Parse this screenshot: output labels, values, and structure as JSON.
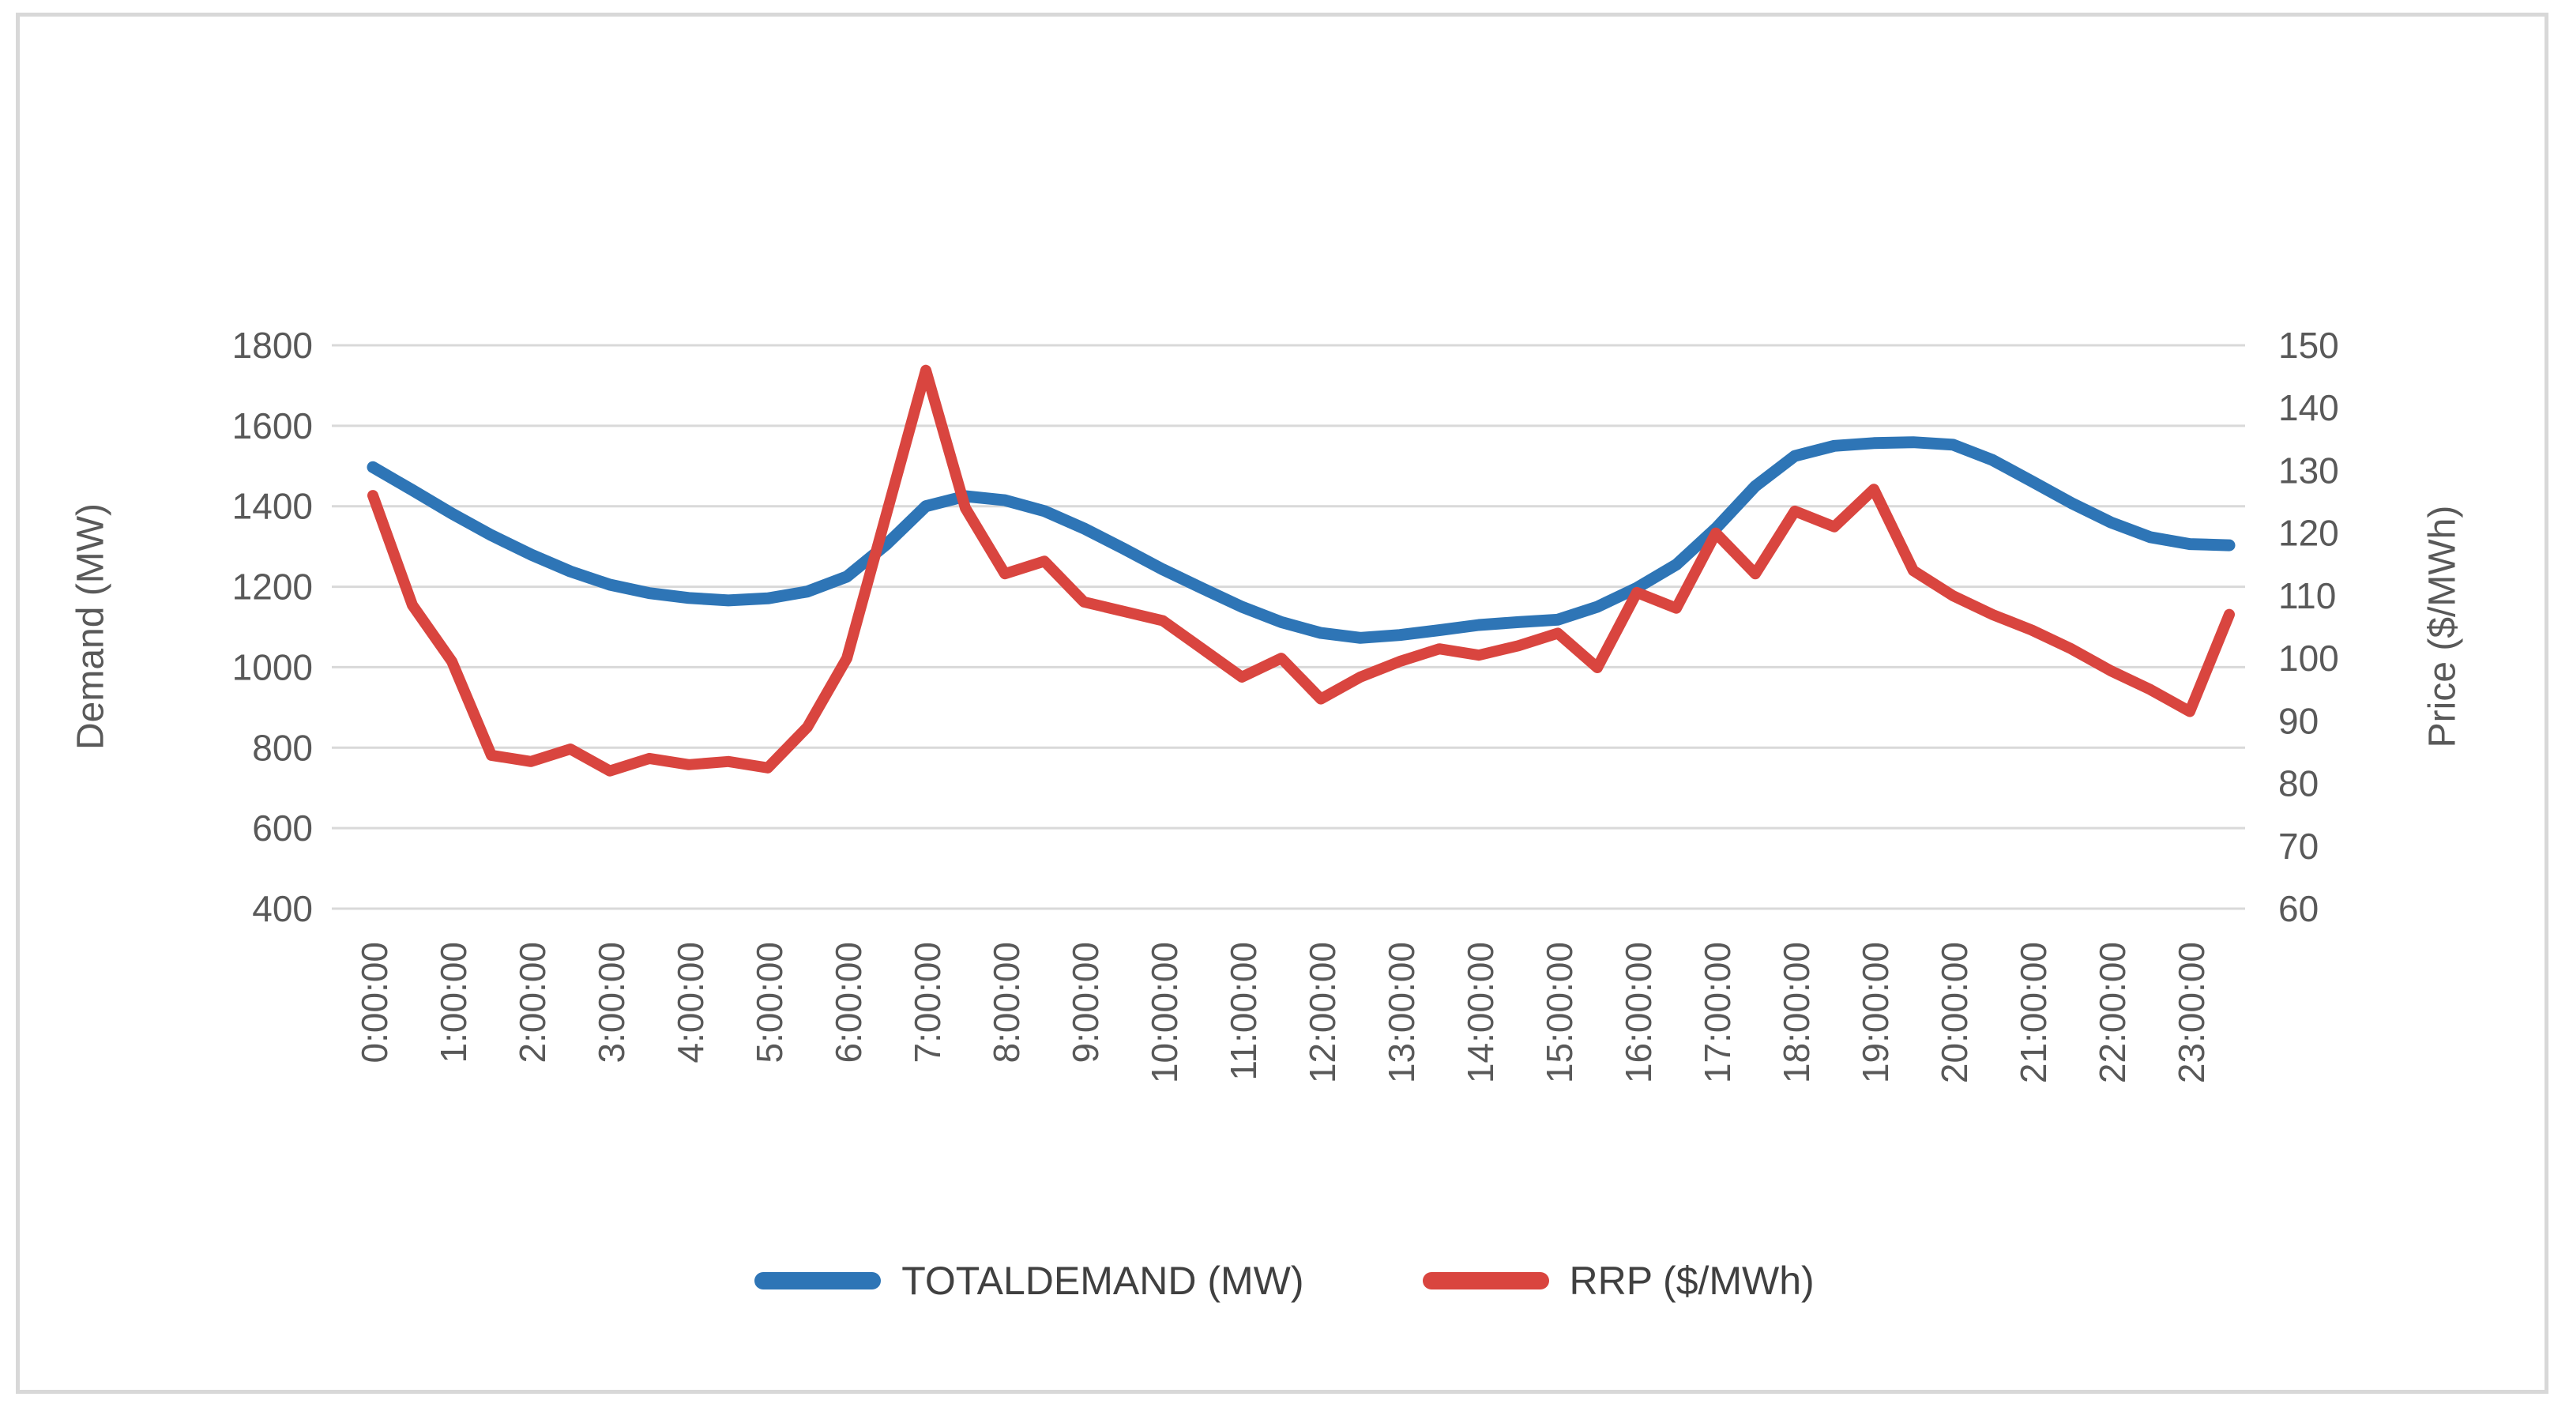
{
  "chart_data": {
    "type": "line",
    "x": [
      "0:00:00",
      "0:30:00",
      "1:00:00",
      "1:30:00",
      "2:00:00",
      "2:30:00",
      "3:00:00",
      "3:30:00",
      "4:00:00",
      "4:30:00",
      "5:00:00",
      "5:30:00",
      "6:00:00",
      "6:30:00",
      "7:00:00",
      "7:30:00",
      "8:00:00",
      "8:30:00",
      "9:00:00",
      "9:30:00",
      "10:00:00",
      "10:30:00",
      "11:00:00",
      "11:30:00",
      "12:00:00",
      "12:30:00",
      "13:00:00",
      "13:30:00",
      "14:00:00",
      "14:30:00",
      "15:00:00",
      "15:30:00",
      "16:00:00",
      "16:30:00",
      "17:00:00",
      "17:30:00",
      "18:00:00",
      "18:30:00",
      "19:00:00",
      "19:30:00",
      "20:00:00",
      "20:30:00",
      "21:00:00",
      "21:30:00",
      "22:00:00",
      "22:30:00",
      "23:00:00",
      "23:30:00"
    ],
    "x_tick_labels": [
      "0:00:00",
      "1:00:00",
      "2:00:00",
      "3:00:00",
      "4:00:00",
      "5:00:00",
      "6:00:00",
      "7:00:00",
      "8:00:00",
      "9:00:00",
      "10:00:00",
      "11:00:00",
      "12:00:00",
      "13:00:00",
      "14:00:00",
      "15:00:00",
      "16:00:00",
      "17:00:00",
      "18:00:00",
      "19:00:00",
      "20:00:00",
      "21:00:00",
      "22:00:00",
      "23:00:00"
    ],
    "series": [
      {
        "name": "TOTALDEMAND (MW)",
        "axis": "left",
        "color": "#2E75B6",
        "values": [
          1497,
          1440,
          1382,
          1328,
          1280,
          1238,
          1205,
          1184,
          1172,
          1166,
          1171,
          1188,
          1225,
          1305,
          1400,
          1425,
          1415,
          1388,
          1345,
          1295,
          1243,
          1196,
          1150,
          1112,
          1085,
          1073,
          1080,
          1092,
          1105,
          1112,
          1118,
          1150,
          1197,
          1255,
          1345,
          1450,
          1525,
          1550,
          1557,
          1559,
          1553,
          1515,
          1462,
          1408,
          1360,
          1323,
          1306,
          1303
        ]
      },
      {
        "name": "RRP ($/MWh)",
        "axis": "right",
        "color": "#D9453F",
        "values": [
          126,
          108.5,
          99.5,
          84.5,
          83.5,
          85.5,
          82,
          84,
          83,
          83.5,
          82.5,
          89,
          100,
          123,
          146,
          124,
          113.5,
          115.5,
          109,
          107.5,
          106,
          101.5,
          97,
          100,
          93.5,
          97,
          99.5,
          101.5,
          100.5,
          102,
          104,
          98.5,
          110.5,
          108,
          120,
          113.5,
          123.5,
          121,
          127,
          114,
          110,
          107,
          104.5,
          101.5,
          98,
          95,
          91.5,
          107
        ]
      }
    ],
    "left_axis": {
      "title": "Demand (MW)",
      "min": 400,
      "max": 1800,
      "step": 200,
      "tick_labels": [
        "1800",
        "1600",
        "1400",
        "1200",
        "1000",
        "800",
        "600",
        "400"
      ]
    },
    "right_axis": {
      "title": "Price ($/MWh)",
      "min": 60,
      "max": 150,
      "step": 10,
      "tick_labels": [
        "150",
        "140",
        "130",
        "120",
        "110",
        "100",
        "90",
        "80",
        "70",
        "60"
      ]
    },
    "grid": true,
    "legend_position": "bottom"
  },
  "legend": {
    "items": [
      {
        "label": "TOTALDEMAND (MW)",
        "color": "#2E75B6"
      },
      {
        "label": "RRP ($/MWh)",
        "color": "#D9453F"
      }
    ]
  },
  "style": {
    "grid_color": "#D9D9D9",
    "text_color": "#595959",
    "frame_color": "#D8D8D8",
    "background": "#FFFFFF"
  }
}
